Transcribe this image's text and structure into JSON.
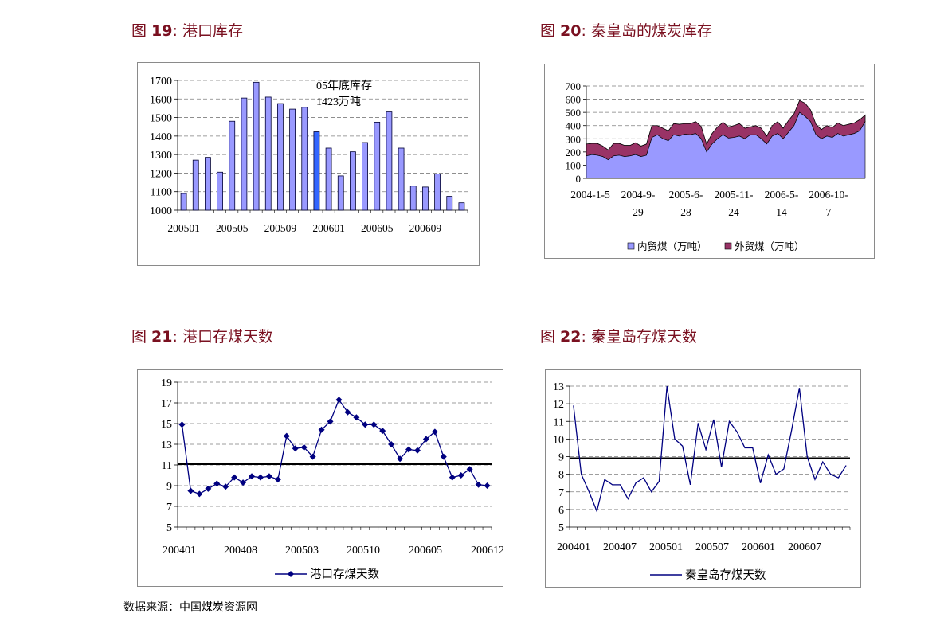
{
  "figures": [
    {
      "num_prefix": "图 ",
      "num": "19",
      "colon": ": ",
      "title": "港口库存"
    },
    {
      "num_prefix": "图 ",
      "num": "20",
      "colon": ": ",
      "title": "秦皇岛的煤炭库存"
    },
    {
      "num_prefix": "图 ",
      "num": "21",
      "colon": ": ",
      "title": "港口存煤天数"
    },
    {
      "num_prefix": "图 ",
      "num": "22",
      "colon": ": ",
      "title": "秦皇岛存煤天数"
    }
  ],
  "source": "数据来源：中国煤炭资源网",
  "chart_data": [
    {
      "type": "bar",
      "title": "港口库存",
      "categories": [
        "200501",
        "200502",
        "200503",
        "200504",
        "200505",
        "200506",
        "200507",
        "200508",
        "200509",
        "200510",
        "200511",
        "200512",
        "200601",
        "200602",
        "200603",
        "200604",
        "200605",
        "200606",
        "200607",
        "200608",
        "200609",
        "200610",
        "200611",
        "200612"
      ],
      "values": [
        1090,
        1270,
        1285,
        1205,
        1480,
        1605,
        1690,
        1610,
        1575,
        1545,
        1555,
        1423,
        1335,
        1185,
        1315,
        1365,
        1475,
        1530,
        1335,
        1130,
        1125,
        1195,
        1075,
        1040
      ],
      "highlight_index": 11,
      "xtick_labels": [
        "200501",
        "200505",
        "200509",
        "200601",
        "200605",
        "200609"
      ],
      "yticks": [
        "1000",
        "1100",
        "1200",
        "1300",
        "1400",
        "1500",
        "1600",
        "1700"
      ],
      "ylim": [
        1000,
        1700
      ],
      "annotation": [
        "05年底库存",
        "1423万吨"
      ],
      "colors": {
        "bar": "#9999ff",
        "highlight": "#3366ff"
      },
      "grid": "dashed horizontal"
    },
    {
      "type": "area",
      "title": "秦皇岛的煤炭库存",
      "series": [
        {
          "name": "内贸煤（万吨）",
          "color": "#9999ff",
          "values": [
            170,
            180,
            175,
            165,
            140,
            170,
            175,
            165,
            170,
            180,
            165,
            175,
            310,
            330,
            300,
            285,
            330,
            320,
            335,
            330,
            340,
            300,
            200,
            260,
            300,
            330,
            305,
            310,
            320,
            300,
            330,
            330,
            300,
            260,
            320,
            340,
            300,
            350,
            400,
            500,
            470,
            430,
            330,
            300,
            320,
            310,
            340,
            320,
            330,
            340,
            360,
            430
          ]
        },
        {
          "name": "外贸煤（万吨）",
          "color": "#993366",
          "values": [
            90,
            85,
            90,
            80,
            75,
            95,
            90,
            85,
            80,
            90,
            80,
            85,
            90,
            70,
            80,
            75,
            85,
            90,
            80,
            85,
            90,
            95,
            60,
            80,
            90,
            95,
            85,
            90,
            95,
            80,
            60,
            70,
            80,
            60,
            80,
            90,
            80,
            90,
            90,
            90,
            100,
            90,
            80,
            70,
            80,
            75,
            80,
            80,
            80,
            80,
            85,
            50
          ]
        }
      ],
      "xtick_labels": [
        [
          "2004-1-5",
          ""
        ],
        [
          "2004-9-",
          "29"
        ],
        [
          "2005-6-",
          "28"
        ],
        [
          "2005-11-",
          "24"
        ],
        [
          "2006-5-",
          "14"
        ],
        [
          "2006-10-",
          "7"
        ]
      ],
      "yticks": [
        "0",
        "100",
        "200",
        "300",
        "400",
        "500",
        "600",
        "700"
      ],
      "ylim": [
        0,
        700
      ],
      "legend": "bottom"
    },
    {
      "type": "line",
      "title": "港口存煤天数",
      "series": [
        {
          "name": "港口存煤天数",
          "color": "#000080",
          "marker": "diamond",
          "values": [
            14.9,
            8.5,
            8.2,
            8.7,
            9.2,
            8.9,
            9.8,
            9.3,
            9.9,
            9.8,
            9.9,
            9.6,
            13.8,
            12.6,
            12.7,
            11.8,
            14.4,
            15.2,
            17.3,
            16.1,
            15.6,
            14.9,
            14.9,
            14.3,
            13.0,
            11.6,
            12.5,
            12.4,
            13.5,
            14.2,
            11.8,
            9.8,
            10.0,
            10.6,
            9.1,
            9.0
          ]
        },
        {
          "name": "",
          "color": "#000000",
          "values": [
            11.1
          ]
        }
      ],
      "xtick_labels": [
        "200401",
        "200408",
        "200503",
        "200510",
        "200605",
        "200612"
      ],
      "yticks": [
        "5",
        "7",
        "9",
        "11",
        "13",
        "15",
        "17",
        "19"
      ],
      "ylim": [
        5,
        19
      ],
      "legend": "bottom"
    },
    {
      "type": "line",
      "title": "秦皇岛存煤天数",
      "series": [
        {
          "name": "秦皇岛存煤天数",
          "color": "#000080",
          "values": [
            11.9,
            8.0,
            7.0,
            5.9,
            7.7,
            7.4,
            7.4,
            6.6,
            7.5,
            7.8,
            7.0,
            7.6,
            13.0,
            10.0,
            9.6,
            7.4,
            10.9,
            9.4,
            11.1,
            8.4,
            11.0,
            10.4,
            9.5,
            9.5,
            7.5,
            9.1,
            8.0,
            8.3,
            10.5,
            12.9,
            9.0,
            7.7,
            8.7,
            8.0,
            7.8,
            8.5
          ]
        },
        {
          "name": "",
          "color": "#000000",
          "values": [
            8.9
          ]
        }
      ],
      "xtick_labels": [
        "200401",
        "200407",
        "200501",
        "200507",
        "200601",
        "200607"
      ],
      "yticks": [
        "5",
        "6",
        "7",
        "8",
        "9",
        "10",
        "11",
        "12",
        "13"
      ],
      "ylim": [
        5,
        13
      ],
      "legend": "bottom"
    }
  ]
}
